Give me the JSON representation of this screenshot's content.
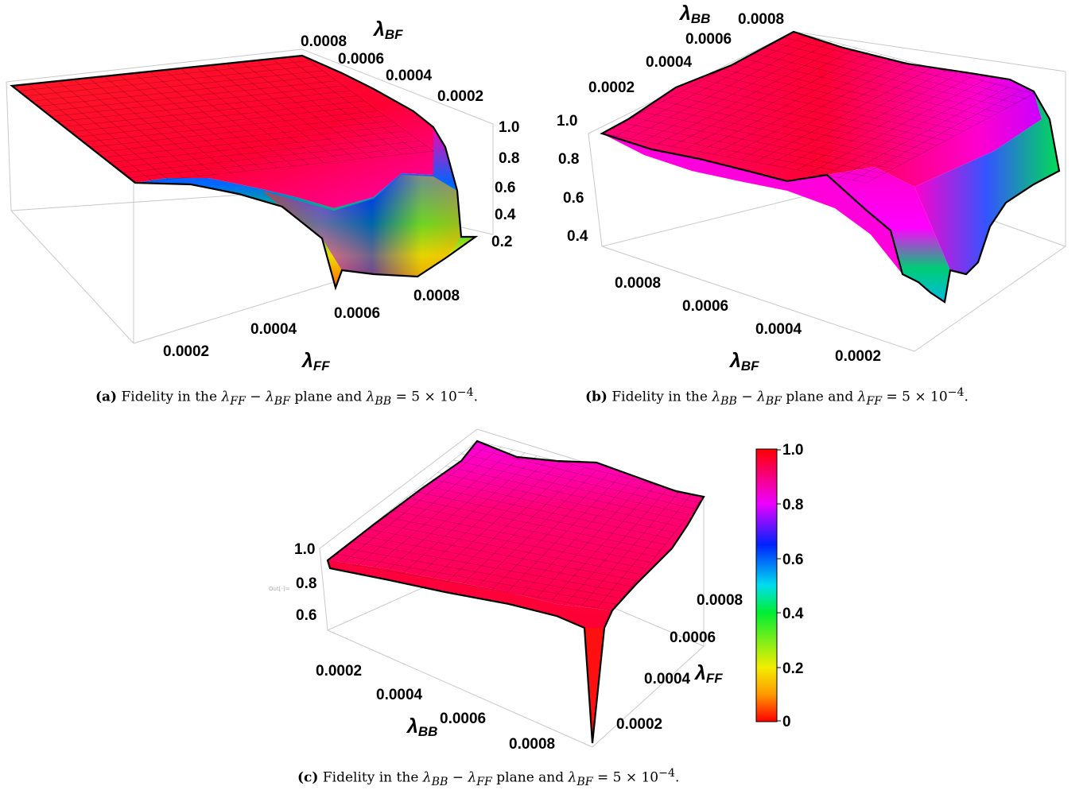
{
  "chart_data": [
    {
      "type": "surface3d",
      "tag": "(a)",
      "caption": "Fidelity in the λ_FF − λ_BF plane and λ_BB = 5 × 10^−4.",
      "zlim": [
        0.2,
        1.0
      ],
      "axes": {
        "x": {
          "label": "λ",
          "sub": "FF",
          "ticks": [
            "0.0002",
            "0.0004",
            "0.0006",
            "0.0008"
          ]
        },
        "y": {
          "label": "λ",
          "sub": "BF",
          "ticks": [
            "0.0008",
            "0.0006",
            "0.0004",
            "0.0002"
          ]
        },
        "z": {
          "ticks": [
            "1.0",
            "0.8",
            "0.6",
            "0.4",
            "0.2"
          ]
        }
      },
      "x": [
        5e-05,
        0.0001,
        0.00015,
        0.0002,
        0.00025,
        0.0003,
        0.00035,
        0.0004,
        0.00045,
        0.0005,
        0.00055,
        0.0006,
        0.00065,
        0.0007,
        0.00075,
        0.0008,
        0.00085,
        0.0009,
        0.00095,
        0.001
      ],
      "y": [
        5e-05,
        0.0001,
        0.00015,
        0.0002,
        0.00025,
        0.0003,
        0.00035,
        0.0004,
        0.00045,
        0.0005,
        0.00055,
        0.0006,
        0.00065,
        0.0007,
        0.00075,
        0.0008,
        0.00085,
        0.0009,
        0.00095,
        0.001
      ],
      "z_profile_along_x": [
        1.0,
        1.0,
        1.0,
        1.0,
        0.99,
        0.99,
        0.98,
        0.97,
        0.95,
        0.92,
        0.85,
        0.55,
        0.35,
        0.25,
        0.22,
        0.3,
        0.45,
        0.3,
        0.25,
        0.3
      ]
    },
    {
      "type": "surface3d",
      "tag": "(b)",
      "caption": "Fidelity in the λ_BB − λ_BF plane and λ_FF = 5 × 10^−4.",
      "zlim": [
        0.3,
        1.0
      ],
      "axes": {
        "x": {
          "label": "λ",
          "sub": "BF",
          "ticks": [
            "0.0008",
            "0.0006",
            "0.0004",
            "0.0002"
          ]
        },
        "y": {
          "label": "λ",
          "sub": "BB",
          "ticks": [
            "0.0002",
            "0.0004",
            "0.0006",
            "0.0008"
          ]
        },
        "z": {
          "ticks": [
            "1.0",
            "0.8",
            "0.6",
            "0.4"
          ]
        }
      },
      "x": [
        0.001,
        0.00095,
        0.0009,
        0.00085,
        0.0008,
        0.00075,
        0.0007,
        0.00065,
        0.0006,
        0.00055,
        0.0005,
        0.00045,
        0.0004,
        0.00035,
        0.0003,
        0.00025,
        0.0002,
        0.00015,
        0.0001,
        5e-05
      ],
      "y": [
        5e-05,
        0.0001,
        0.00015,
        0.0002,
        0.00025,
        0.0003,
        0.00035,
        0.0004,
        0.00045,
        0.0005,
        0.00055,
        0.0006,
        0.00065,
        0.0007,
        0.00075,
        0.0008,
        0.00085,
        0.0009,
        0.00095,
        0.001
      ],
      "z_profile_along_x": [
        0.95,
        0.95,
        0.94,
        0.94,
        0.93,
        0.92,
        0.91,
        0.9,
        0.89,
        0.88,
        0.85,
        0.8,
        0.72,
        0.55,
        0.4,
        0.32,
        0.38,
        0.45,
        0.55,
        0.6
      ]
    },
    {
      "type": "surface3d",
      "tag": "(c)",
      "caption": "Fidelity in the λ_BB − λ_FF plane and λ_BF = 5 × 10^−4.",
      "zlim": [
        0.5,
        1.0
      ],
      "axes": {
        "x": {
          "label": "λ",
          "sub": "BB",
          "ticks": [
            "0.0002",
            "0.0004",
            "0.0006",
            "0.0008"
          ]
        },
        "y": {
          "label": "λ",
          "sub": "FF",
          "ticks": [
            "0.0008",
            "0.0006",
            "0.0004",
            "0.0002"
          ]
        },
        "z": {
          "ticks": [
            "1.0",
            "0.8",
            "0.6"
          ]
        }
      },
      "x": [
        5e-05,
        0.0001,
        0.00015,
        0.0002,
        0.00025,
        0.0003,
        0.00035,
        0.0004,
        0.00045,
        0.0005,
        0.00055,
        0.0006,
        0.00065,
        0.0007,
        0.00075,
        0.0008,
        0.00085,
        0.0009,
        0.00095,
        0.001
      ],
      "y": [
        5e-05,
        0.0001,
        0.00015,
        0.0002,
        0.00025,
        0.0003,
        0.00035,
        0.0004,
        0.00045,
        0.0005,
        0.00055,
        0.0006,
        0.00065,
        0.0007,
        0.00075,
        0.0008,
        0.00085,
        0.0009,
        0.00095,
        0.001
      ],
      "z_range_shown": [
        0.9,
        1.0
      ],
      "notable_point": {
        "x": 0.001,
        "y": 5e-05,
        "z": 0.0
      }
    }
  ],
  "colorbar": {
    "ticks": [
      "1.0",
      "0.8",
      "0.6",
      "0.4",
      "0.2",
      "0"
    ],
    "stops": [
      {
        "v": 0.0,
        "color": "#ff0000"
      },
      {
        "v": 0.1,
        "color": "#ff9900"
      },
      {
        "v": 0.2,
        "color": "#f2ee00"
      },
      {
        "v": 0.4,
        "color": "#00ee33"
      },
      {
        "v": 0.5,
        "color": "#00ddee"
      },
      {
        "v": 0.65,
        "color": "#0022ff"
      },
      {
        "v": 0.8,
        "color": "#ee00ff"
      },
      {
        "v": 1.0,
        "color": "#ff0000"
      }
    ]
  },
  "captions": {
    "a": {
      "tag": "(a)",
      "pre": "Fidelity in the ",
      "mid": " plane and ",
      "l1": "λ",
      "s1": "FF",
      "l2": "λ",
      "s2": "BF",
      "l3": "λ",
      "s3": "BB",
      "minus": " − ",
      "eq": " = 5 × 10",
      "exp": "−4",
      "end": "."
    },
    "b": {
      "tag": "(b)",
      "pre": "Fidelity in the ",
      "mid": " plane and ",
      "l1": "λ",
      "s1": "BB",
      "l2": "λ",
      "s2": "BF",
      "l3": "λ",
      "s3": "FF",
      "minus": " − ",
      "eq": " = 5 × 10",
      "exp": "−4",
      "end": "."
    },
    "c": {
      "tag": "(c)",
      "pre": "Fidelity in the ",
      "mid": " plane and ",
      "l1": "λ",
      "s1": "BB",
      "l2": "λ",
      "s2": "FF",
      "l3": "λ",
      "s3": "BF",
      "minus": " − ",
      "eq": " = 5 × 10",
      "exp": "−4",
      "end": "."
    }
  },
  "stray_label": "Out[-]="
}
